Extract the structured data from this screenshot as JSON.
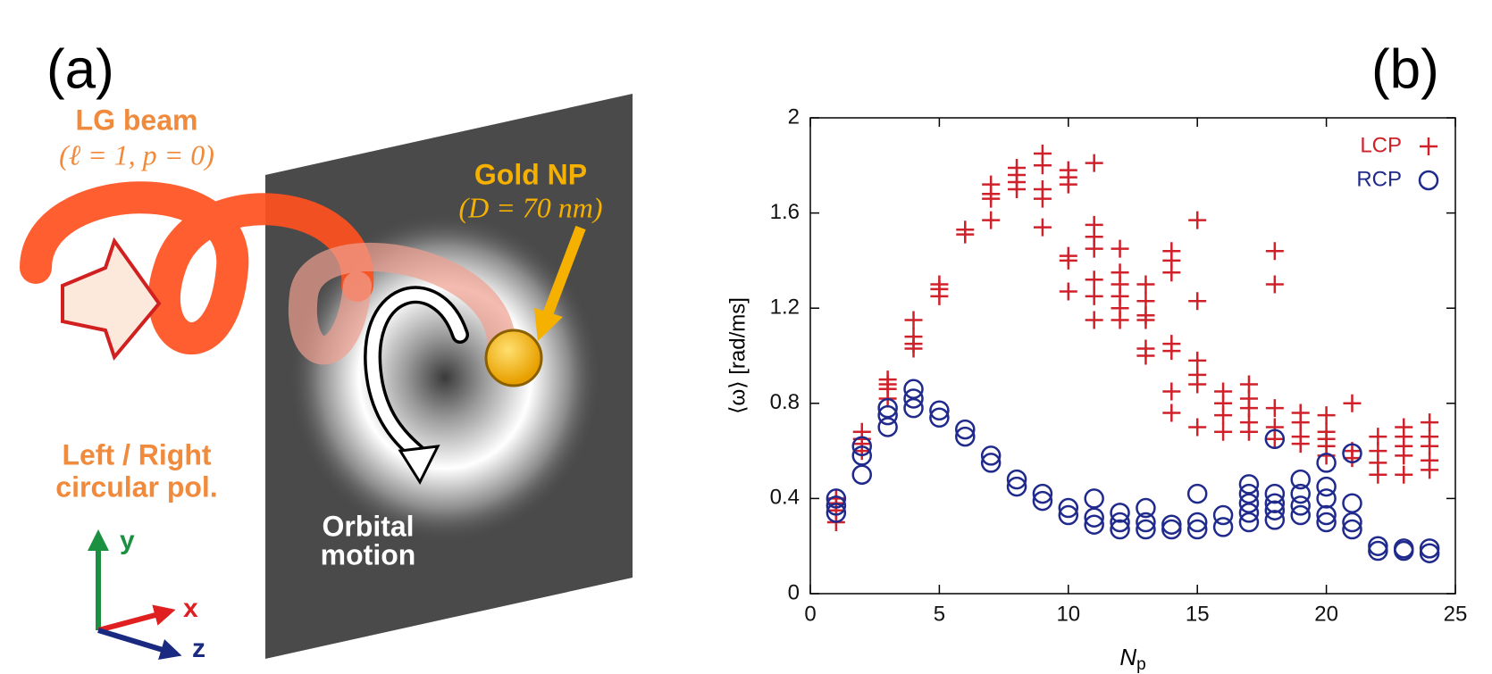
{
  "panels": {
    "a": "(a)",
    "b": "(b)"
  },
  "diagram": {
    "beam_title": "LG beam",
    "beam_params": "(ℓ = 1, p = 0)",
    "particle_title": "Gold NP",
    "particle_size": "(D = 70 nm)",
    "polarization_line1": "Left / Right",
    "polarization_line2": "circular pol.",
    "motion_line1": "Orbital",
    "motion_line2": "motion",
    "axis_y": "y",
    "axis_x": "x",
    "axis_z": "z"
  },
  "chart_data": {
    "type": "scatter",
    "x_label": "N",
    "x_label_sub": "p",
    "y_label": "⟨ω⟩ [rad/ms]",
    "xlim": [
      0,
      25
    ],
    "xticks": [
      0,
      5,
      10,
      15,
      20,
      25
    ],
    "ylim": [
      0,
      2
    ],
    "yticks": [
      0,
      0.4,
      0.8,
      1.2,
      1.6,
      2
    ],
    "legend": "upper right",
    "series": [
      {
        "name": "LCP",
        "color": "#d0202a",
        "marker": "plus",
        "x": [
          1,
          1,
          1,
          1,
          2,
          2,
          2,
          2,
          3,
          3,
          3,
          3,
          4,
          4,
          4,
          4,
          5,
          5,
          5,
          6,
          6,
          7,
          7,
          7,
          7,
          8,
          8,
          8,
          8,
          9,
          9,
          9,
          9,
          9,
          10,
          10,
          10,
          10,
          10,
          10,
          11,
          11,
          11,
          11,
          11,
          11,
          11,
          12,
          12,
          12,
          12,
          12,
          12,
          13,
          13,
          13,
          13,
          13,
          13,
          14,
          14,
          14,
          14,
          14,
          14,
          14,
          15,
          15,
          15,
          15,
          15,
          15,
          16,
          16,
          16,
          16,
          17,
          17,
          17,
          17,
          17,
          18,
          18,
          18,
          18,
          18,
          19,
          19,
          19,
          19,
          20,
          20,
          20,
          20,
          20,
          21,
          21,
          21,
          22,
          22,
          22,
          22,
          23,
          23,
          23,
          23,
          23,
          24,
          24,
          24,
          24,
          24
        ],
        "values": [
          0.3,
          0.35,
          0.38,
          0.4,
          0.6,
          0.63,
          0.65,
          0.68,
          0.82,
          0.86,
          0.88,
          0.9,
          1.03,
          1.05,
          1.08,
          1.15,
          1.25,
          1.28,
          1.3,
          1.51,
          1.53,
          1.57,
          1.66,
          1.68,
          1.72,
          1.7,
          1.73,
          1.76,
          1.79,
          1.54,
          1.66,
          1.7,
          1.8,
          1.85,
          1.27,
          1.4,
          1.42,
          1.72,
          1.75,
          1.78,
          1.15,
          1.25,
          1.32,
          1.45,
          1.5,
          1.55,
          1.81,
          1.15,
          1.2,
          1.25,
          1.3,
          1.35,
          1.45,
          1.0,
          1.03,
          1.15,
          1.17,
          1.23,
          1.3,
          0.76,
          0.85,
          1.02,
          1.05,
          1.35,
          1.4,
          1.44,
          0.7,
          0.88,
          0.92,
          0.98,
          1.23,
          1.57,
          0.68,
          0.75,
          0.8,
          0.85,
          0.68,
          0.72,
          0.78,
          0.82,
          0.88,
          0.65,
          0.7,
          0.78,
          1.3,
          1.44,
          0.63,
          0.66,
          0.72,
          0.76,
          0.58,
          0.62,
          0.65,
          0.68,
          0.75,
          0.57,
          0.6,
          0.8,
          0.5,
          0.55,
          0.6,
          0.66,
          0.5,
          0.58,
          0.62,
          0.66,
          0.7,
          0.52,
          0.56,
          0.62,
          0.66,
          0.72
        ]
      },
      {
        "name": "RCP",
        "color": "#1f2a8c",
        "marker": "circle",
        "x": [
          1,
          1,
          1,
          2,
          2,
          2,
          3,
          3,
          3,
          4,
          4,
          4,
          5,
          5,
          6,
          6,
          7,
          7,
          8,
          8,
          9,
          9,
          10,
          10,
          11,
          11,
          11,
          12,
          12,
          12,
          13,
          13,
          13,
          14,
          14,
          15,
          15,
          15,
          16,
          16,
          17,
          17,
          17,
          17,
          17,
          18,
          18,
          18,
          18,
          18,
          19,
          19,
          19,
          19,
          20,
          20,
          20,
          20,
          20,
          21,
          21,
          21,
          21,
          22,
          22,
          23,
          23,
          24,
          24
        ],
        "values": [
          0.34,
          0.37,
          0.4,
          0.5,
          0.58,
          0.62,
          0.7,
          0.75,
          0.78,
          0.78,
          0.82,
          0.86,
          0.74,
          0.77,
          0.66,
          0.69,
          0.55,
          0.58,
          0.45,
          0.48,
          0.39,
          0.42,
          0.33,
          0.36,
          0.29,
          0.32,
          0.4,
          0.27,
          0.3,
          0.34,
          0.27,
          0.3,
          0.36,
          0.27,
          0.29,
          0.27,
          0.3,
          0.42,
          0.28,
          0.33,
          0.3,
          0.34,
          0.38,
          0.42,
          0.46,
          0.31,
          0.35,
          0.38,
          0.42,
          0.65,
          0.33,
          0.37,
          0.42,
          0.48,
          0.3,
          0.33,
          0.4,
          0.45,
          0.55,
          0.27,
          0.3,
          0.38,
          0.59,
          0.18,
          0.2,
          0.18,
          0.19,
          0.17,
          0.19
        ]
      }
    ]
  }
}
